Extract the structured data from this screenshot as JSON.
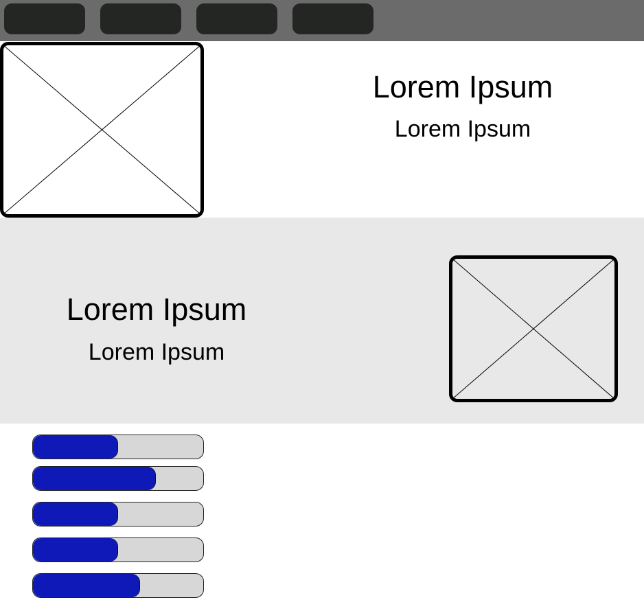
{
  "nav": {
    "buttons": [
      {
        "label": ""
      },
      {
        "label": ""
      },
      {
        "label": ""
      },
      {
        "label": ""
      }
    ]
  },
  "section1": {
    "title": "Lorem Ipsum",
    "subtitle": "Lorem Ipsum"
  },
  "section2": {
    "title": "Lorem Ipsum",
    "subtitle": "Lorem Ipsum"
  },
  "progress_bars": [
    {
      "percent": 50
    },
    {
      "percent": 72
    },
    {
      "percent": 50
    },
    {
      "percent": 50
    },
    {
      "percent": 63
    }
  ],
  "colors": {
    "topbar": "#6b6b6b",
    "nav_button": "#242624",
    "section2_background": "#e8e8e8",
    "progress_fill": "#0f19b8",
    "progress_track": "#d7d7d7"
  },
  "icons": {
    "placeholder": "image-placeholder-icon"
  }
}
